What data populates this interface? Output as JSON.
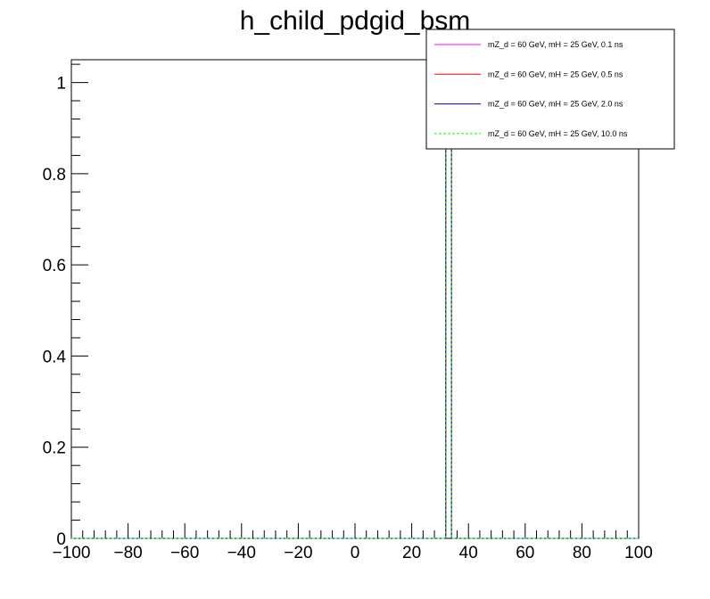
{
  "chart_data": {
    "type": "line",
    "title": "h_child_pdgid_bsm",
    "xlabel": "",
    "ylabel": "",
    "xlim": [
      -100,
      100
    ],
    "ylim": [
      0,
      1.05
    ],
    "x_ticks": [
      -100,
      -80,
      -60,
      -40,
      -20,
      0,
      20,
      40,
      60,
      80,
      100
    ],
    "x_tick_labels": [
      "−100",
      "−80",
      "−60",
      "−40",
      "−20",
      "0",
      "20",
      "40",
      "60",
      "80",
      "100"
    ],
    "y_ticks": [
      0,
      0.2,
      0.4,
      0.6,
      0.8,
      1
    ],
    "y_tick_labels": [
      "0",
      "0.2",
      "0.4",
      "0.6",
      "0.8",
      "1"
    ],
    "grid": false,
    "legend_position": "top-right",
    "series": [
      {
        "name": "mZ_d = 60 GeV, mH = 25 GeV, 0.1 ns",
        "color": "#ff00ff",
        "style": "solid",
        "bin_low": 32,
        "bin_high": 34,
        "value": 1
      },
      {
        "name": "mZ_d = 60 GeV, mH = 25 GeV, 0.5 ns",
        "color": "#ff0000",
        "style": "solid",
        "bin_low": 32,
        "bin_high": 34,
        "value": 1
      },
      {
        "name": "mZ_d = 60 GeV, mH = 25 GeV, 2.0 ns",
        "color": "#000099",
        "style": "solid",
        "bin_low": 32,
        "bin_high": 34,
        "value": 1
      },
      {
        "name": "mZ_d = 60 GeV, mH = 25 GeV, 10.0 ns",
        "color": "#00ff00",
        "style": "dashed",
        "bin_low": 32,
        "bin_high": 34,
        "value": 1
      }
    ]
  }
}
